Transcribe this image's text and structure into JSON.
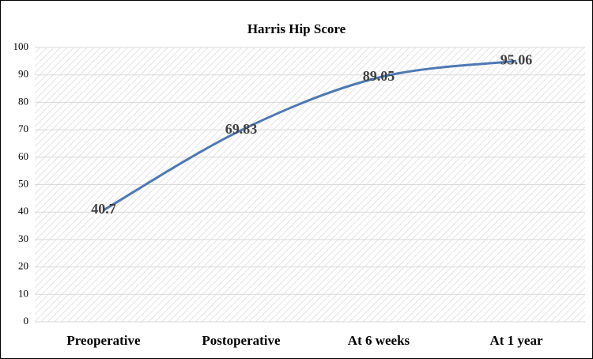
{
  "chart_data": {
    "type": "line",
    "title": "Harris Hip Score",
    "categories": [
      "Preoperative",
      "Postoperative",
      "At 6 weeks",
      "At 1 year"
    ],
    "values": [
      40.7,
      69.83,
      89.05,
      95.06
    ],
    "color": "#4e79b3",
    "ylim": [
      0,
      100
    ],
    "yticks": [
      0,
      10,
      20,
      30,
      40,
      50,
      60,
      70,
      80,
      90,
      100
    ],
    "grid": true,
    "smooth": true,
    "data_labels": true
  }
}
